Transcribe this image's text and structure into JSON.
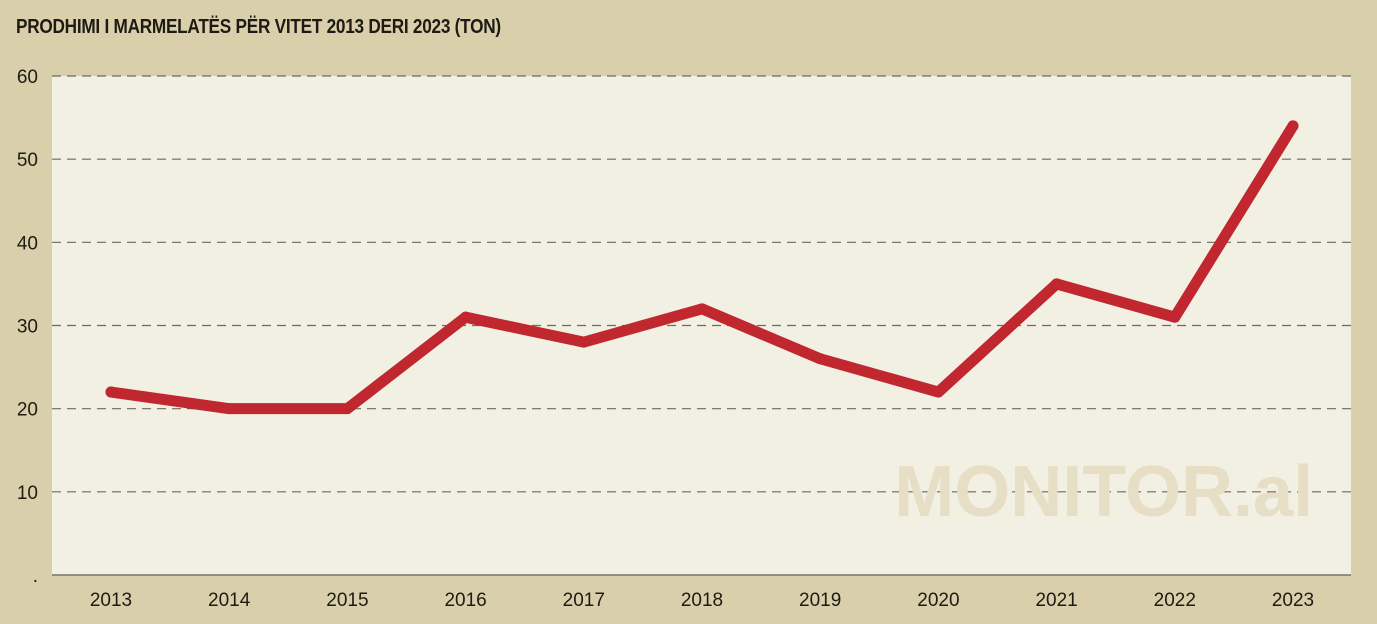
{
  "chart_data": {
    "type": "line",
    "title": "PRODHIMI I MARMELATËS PËR VITET 2013 DERI 2023 (TON)",
    "xlabel": "",
    "ylabel": "",
    "x": [
      "2013",
      "2014",
      "2015",
      "2016",
      "2017",
      "2018",
      "2019",
      "2020",
      "2021",
      "2022",
      "2023"
    ],
    "series": [
      {
        "values": [
          22,
          20,
          20,
          31,
          28,
          32,
          26,
          22,
          35,
          31,
          54
        ]
      }
    ],
    "ylim": [
      0,
      60
    ],
    "yticks": [
      ".",
      "10",
      "20",
      "30",
      "40",
      "50",
      "60"
    ],
    "grid": "horizontal-dashed",
    "line_color": "#c0272f",
    "plot_background": "#f2efe3",
    "page_background": "#d9d0ab",
    "watermark": "MONITOR.al"
  }
}
